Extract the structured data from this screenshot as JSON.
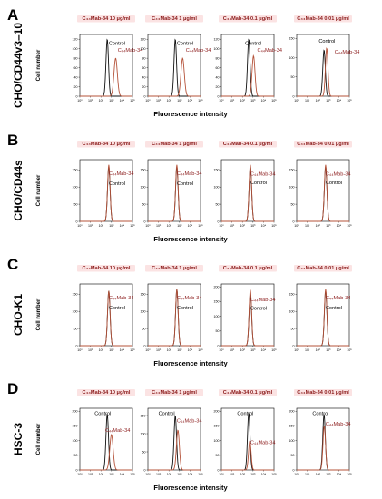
{
  "colors": {
    "control": "#111111",
    "sample": "#b5533a",
    "title_bg": "#fbe3e3",
    "title_text": "#8b1a1a"
  },
  "figure": {
    "xlabel": "Fluorescence intensity",
    "ylabel": "Cell number",
    "x_ticks": [
      "10⁰",
      "10¹",
      "10²",
      "10³",
      "10⁴",
      "10⁵"
    ],
    "legend_control": "Control",
    "legend_sample": "C₄₄Mab-34"
  },
  "chart_data": [
    {
      "letter": "A",
      "cell_line": "CHO/CD44v3–10",
      "type": "line",
      "panels": [
        {
          "title": "C₄₄Mab-34 10 μg/ml",
          "y_ticks": [
            0,
            20,
            40,
            60,
            80,
            100,
            120
          ],
          "ylim": [
            0,
            130
          ],
          "control": {
            "center": 2.6,
            "width": 0.12,
            "height": 120
          },
          "sample": {
            "center": 3.4,
            "width": 0.16,
            "height": 80
          }
        },
        {
          "title": "C₄₄Mab-34  1 μg/ml",
          "y_ticks": [
            0,
            20,
            40,
            60,
            80,
            100,
            120
          ],
          "ylim": [
            0,
            130
          ],
          "control": {
            "center": 2.6,
            "width": 0.12,
            "height": 120
          },
          "sample": {
            "center": 3.3,
            "width": 0.16,
            "height": 80
          }
        },
        {
          "title": "C₄₄Mab-34  0.1 μg/ml",
          "y_ticks": [
            0,
            20,
            40,
            60,
            80,
            100,
            120
          ],
          "ylim": [
            0,
            130
          ],
          "control": {
            "center": 2.6,
            "width": 0.12,
            "height": 120
          },
          "sample": {
            "center": 3.05,
            "width": 0.14,
            "height": 85
          }
        },
        {
          "title": "C₄₄Mab-34  0.01 μg/ml",
          "y_ticks": [
            0,
            50,
            100,
            150
          ],
          "ylim": [
            0,
            160
          ],
          "control": {
            "center": 2.6,
            "width": 0.12,
            "height": 120
          },
          "sample": {
            "center": 2.85,
            "width": 0.12,
            "height": 125
          }
        }
      ]
    },
    {
      "letter": "B",
      "cell_line": "CHO/CD44s",
      "type": "line",
      "panels": [
        {
          "title": "C₄₄Mab-34  10 μg/ml",
          "y_ticks": [
            0,
            50,
            100,
            150
          ],
          "ylim": [
            0,
            180
          ],
          "control": {
            "center": 2.75,
            "width": 0.12,
            "height": 160
          },
          "sample": {
            "center": 2.75,
            "width": 0.12,
            "height": 165
          }
        },
        {
          "title": "C₄₄Mab-34  1 μg/ml",
          "y_ticks": [
            0,
            50,
            100,
            150
          ],
          "ylim": [
            0,
            180
          ],
          "control": {
            "center": 2.75,
            "width": 0.12,
            "height": 160
          },
          "sample": {
            "center": 2.75,
            "width": 0.12,
            "height": 165
          }
        },
        {
          "title": "C₄₄Mab-34  0.1 μg/ml",
          "y_ticks": [
            0,
            50,
            100,
            150
          ],
          "ylim": [
            0,
            180
          ],
          "control": {
            "center": 2.75,
            "width": 0.12,
            "height": 160
          },
          "sample": {
            "center": 2.75,
            "width": 0.12,
            "height": 165
          }
        },
        {
          "title": "C₄₄Mab-34  0.01 μg/ml",
          "y_ticks": [
            0,
            50,
            100,
            150
          ],
          "ylim": [
            0,
            180
          ],
          "control": {
            "center": 2.75,
            "width": 0.12,
            "height": 160
          },
          "sample": {
            "center": 2.75,
            "width": 0.12,
            "height": 165
          }
        }
      ]
    },
    {
      "letter": "C",
      "cell_line": "CHO-K1",
      "type": "line",
      "panels": [
        {
          "title": "C₄₄Mab-34  10 μg/ml",
          "y_ticks": [
            0,
            50,
            100,
            150
          ],
          "ylim": [
            0,
            180
          ],
          "control": {
            "center": 2.75,
            "width": 0.12,
            "height": 160
          },
          "sample": {
            "center": 2.75,
            "width": 0.12,
            "height": 160
          }
        },
        {
          "title": "C₄₄Mab-34  1 μg/ml",
          "y_ticks": [
            0,
            50,
            100,
            150
          ],
          "ylim": [
            0,
            180
          ],
          "control": {
            "center": 2.75,
            "width": 0.12,
            "height": 165
          },
          "sample": {
            "center": 2.75,
            "width": 0.12,
            "height": 165
          }
        },
        {
          "title": "C₄₄Mab-34  0.1 μg/ml",
          "y_ticks": [
            0,
            50,
            100,
            150,
            200
          ],
          "ylim": [
            0,
            210
          ],
          "control": {
            "center": 2.75,
            "width": 0.12,
            "height": 180
          },
          "sample": {
            "center": 2.75,
            "width": 0.12,
            "height": 190
          }
        },
        {
          "title": "C₄₄Mab-34  0.01 μg/ml",
          "y_ticks": [
            0,
            50,
            100,
            150
          ],
          "ylim": [
            0,
            180
          ],
          "control": {
            "center": 2.75,
            "width": 0.12,
            "height": 160
          },
          "sample": {
            "center": 2.75,
            "width": 0.12,
            "height": 165
          }
        }
      ]
    },
    {
      "letter": "D",
      "cell_line": "HSC-3",
      "type": "line",
      "panels": [
        {
          "title": "C₄₄Mab-34 10 μg/ml",
          "y_ticks": [
            0,
            50,
            100,
            150,
            200
          ],
          "ylim": [
            0,
            210
          ],
          "control": {
            "center": 2.6,
            "width": 0.12,
            "height": 190
          },
          "sample": {
            "center": 3.0,
            "width": 0.16,
            "height": 120
          }
        },
        {
          "title": "C₄₄Mab-34  1 μg/ml",
          "y_ticks": [
            0,
            50,
            100,
            150
          ],
          "ylim": [
            0,
            170
          ],
          "control": {
            "center": 2.6,
            "width": 0.12,
            "height": 150
          },
          "sample": {
            "center": 2.85,
            "width": 0.14,
            "height": 110
          }
        },
        {
          "title": "C₄₄Mab-34  0.1 μg/ml",
          "y_ticks": [
            0,
            50,
            100,
            150,
            200
          ],
          "ylim": [
            0,
            210
          ],
          "control": {
            "center": 2.6,
            "width": 0.12,
            "height": 195
          },
          "sample": {
            "center": 2.7,
            "width": 0.12,
            "height": 100
          }
        },
        {
          "title": "C₄₄Mab-34  0.01 μg/ml",
          "y_ticks": [
            0,
            50,
            100,
            150,
            200
          ],
          "ylim": [
            0,
            210
          ],
          "control": {
            "center": 2.6,
            "width": 0.12,
            "height": 190
          },
          "sample": {
            "center": 2.62,
            "width": 0.12,
            "height": 150
          }
        }
      ]
    }
  ]
}
